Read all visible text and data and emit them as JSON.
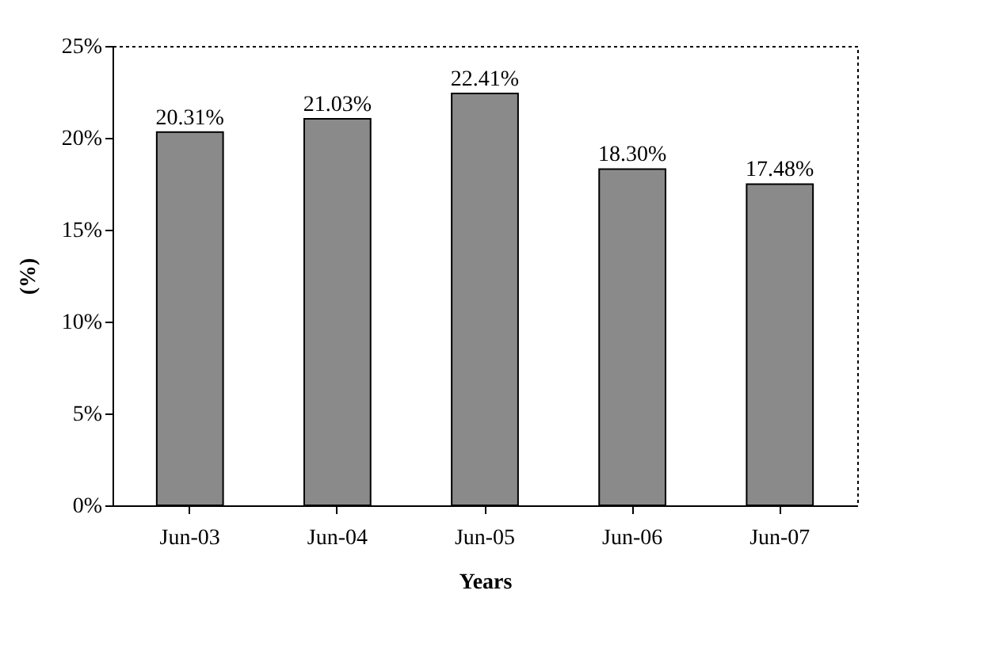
{
  "chart_data": {
    "type": "bar",
    "xlabel": "Years",
    "ylabel": "(%)",
    "categories": [
      "Jun-03",
      "Jun-04",
      "Jun-05",
      "Jun-06",
      "Jun-07"
    ],
    "values": [
      20.31,
      21.03,
      22.41,
      18.3,
      17.48
    ],
    "value_labels": [
      "20.31%",
      "21.03%",
      "22.41%",
      "18.30%",
      "17.48%"
    ],
    "color": "#8a8a8a",
    "ylim": [
      0,
      25
    ],
    "yticks": [
      {
        "value": 0,
        "label": "0%"
      },
      {
        "value": 5,
        "label": "5%"
      },
      {
        "value": 10,
        "label": "10%"
      },
      {
        "value": 15,
        "label": "15%"
      },
      {
        "value": 20,
        "label": "20%"
      },
      {
        "value": 25,
        "label": "25%"
      }
    ],
    "grid": false
  }
}
